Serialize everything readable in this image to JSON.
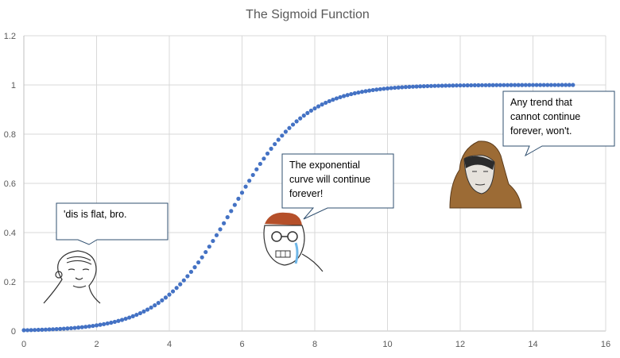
{
  "chart_data": {
    "type": "scatter",
    "title": "The Sigmoid Function",
    "xlabel": "",
    "ylabel": "",
    "xlim": [
      0,
      16
    ],
    "ylim": [
      0,
      1.2
    ],
    "x_ticks": [
      "0",
      "2",
      "4",
      "6",
      "8",
      "10",
      "12",
      "14",
      "16"
    ],
    "y_ticks": [
      "0",
      "0.2",
      "0.4",
      "0.6",
      "0.8",
      "1",
      "1.2"
    ],
    "grid": true,
    "series": [
      {
        "function": "y = 1 / (1 + e^-(x - 5.75))",
        "x_start": 0,
        "x_end": 15.1,
        "x_step": 0.1,
        "color": "#4472c4"
      }
    ]
  },
  "annotations": [
    {
      "id": "flat",
      "lines": [
        "'dis is flat, bro."
      ]
    },
    {
      "id": "exponential",
      "lines": [
        "The exponential",
        "curve will continue",
        "forever!"
      ]
    },
    {
      "id": "trend",
      "lines": [
        "Any trend that",
        "cannot continue",
        "forever, won't."
      ]
    }
  ]
}
